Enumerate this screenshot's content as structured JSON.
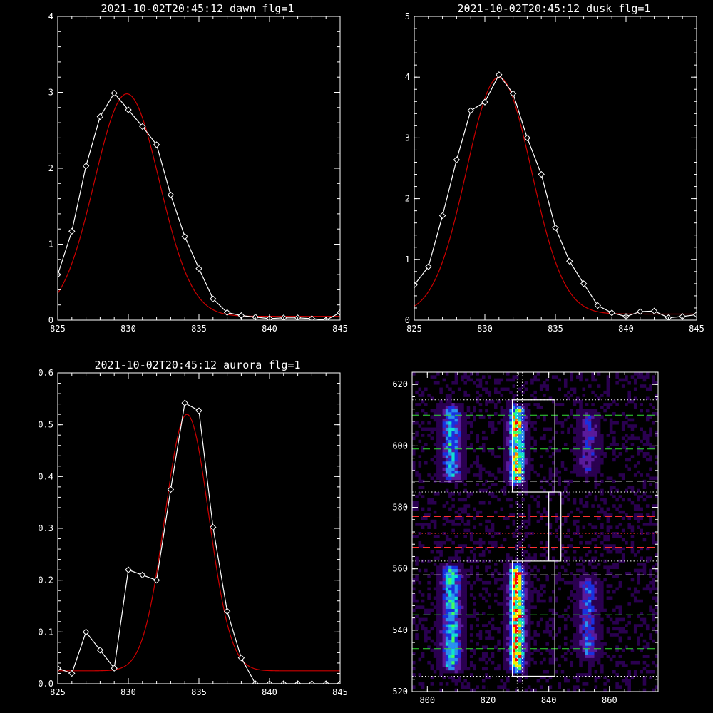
{
  "chart_data": [
    {
      "type": "line",
      "title": "2021-10-02T20:45:12 dawn flg=1",
      "xlabel": "",
      "ylabel": "",
      "xlim": [
        825,
        845
      ],
      "ylim": [
        0,
        4
      ],
      "xticks": [
        825,
        830,
        835,
        840,
        845
      ],
      "yticks": [
        0,
        1,
        2,
        3,
        4
      ],
      "series": [
        {
          "kind": "data",
          "color": "#ffffff",
          "marker": "diamond",
          "x": [
            825,
            826,
            827,
            828,
            829,
            830,
            831,
            832,
            833,
            834,
            835,
            836,
            837,
            838,
            839,
            840,
            841,
            842,
            843,
            844,
            845
          ],
          "y": [
            0.6,
            1.17,
            2.03,
            2.68,
            2.99,
            2.77,
            2.55,
            2.31,
            1.65,
            1.1,
            0.68,
            0.28,
            0.1,
            0.06,
            0.04,
            0.02,
            0.03,
            0.03,
            0.02,
            0.0,
            0.1
          ]
        },
        {
          "kind": "gaussian_fit",
          "color": "#cc0000",
          "amp": 2.93,
          "center": 829.9,
          "sigma": 2.3,
          "offset": 0.05
        }
      ]
    },
    {
      "type": "line",
      "title": "2021-10-02T20:45:12 dusk flg=1",
      "xlabel": "",
      "ylabel": "",
      "xlim": [
        825,
        845
      ],
      "ylim": [
        0,
        5
      ],
      "xticks": [
        825,
        830,
        835,
        840,
        845
      ],
      "yticks": [
        0,
        1,
        2,
        3,
        4,
        5
      ],
      "series": [
        {
          "kind": "data",
          "color": "#ffffff",
          "marker": "diamond",
          "x": [
            825,
            826,
            827,
            828,
            829,
            830,
            831,
            832,
            833,
            834,
            835,
            836,
            837,
            838,
            839,
            840,
            841,
            842,
            843,
            844,
            845
          ],
          "y": [
            0.58,
            0.88,
            1.72,
            2.64,
            3.45,
            3.59,
            4.04,
            3.73,
            3.0,
            2.4,
            1.52,
            0.97,
            0.6,
            0.24,
            0.12,
            0.06,
            0.14,
            0.15,
            0.04,
            0.06,
            0.09
          ]
        },
        {
          "kind": "gaussian_fit",
          "color": "#cc0000",
          "amp": 3.9,
          "center": 831.0,
          "sigma": 2.3,
          "offset": 0.1
        }
      ]
    },
    {
      "type": "line",
      "title": "2021-10-02T20:45:12 aurora flg=1",
      "xlabel": "",
      "ylabel": "",
      "xlim": [
        825,
        845
      ],
      "ylim": [
        0,
        0.6
      ],
      "xticks": [
        825,
        830,
        835,
        840,
        845
      ],
      "yticks": [
        0.0,
        0.1,
        0.2,
        0.3,
        0.4,
        0.5,
        0.6
      ],
      "ytick_labels": [
        "0.0",
        "0.1",
        "0.2",
        "0.3",
        "0.4",
        "0.5",
        "0.6"
      ],
      "series": [
        {
          "kind": "data",
          "color": "#ffffff",
          "marker": "diamond",
          "x": [
            825,
            826,
            827,
            828,
            829,
            830,
            831,
            832,
            833,
            834,
            835,
            836,
            837,
            838,
            839,
            840,
            841,
            842,
            843,
            844,
            845
          ],
          "y": [
            0.03,
            0.02,
            0.1,
            0.065,
            0.03,
            0.22,
            0.21,
            0.2,
            0.375,
            0.542,
            0.527,
            0.302,
            0.14,
            0.05,
            0.0,
            0.0,
            0.0,
            0.0,
            0.0,
            0.0,
            0.0
          ]
        },
        {
          "kind": "gaussian_fit",
          "color": "#cc0000",
          "amp": 0.495,
          "center": 834.15,
          "sigma": 1.55,
          "offset": 0.025
        }
      ]
    },
    {
      "type": "heatmap",
      "title": "",
      "xlabel": "",
      "ylabel": "",
      "xlim": [
        795,
        876
      ],
      "ylim": [
        520,
        624
      ],
      "xticks": [
        800,
        820,
        840,
        860
      ],
      "yticks": [
        520,
        540,
        560,
        580,
        600,
        620
      ],
      "background": "#000000",
      "colormap": [
        "#000000",
        "#2a0050",
        "#5a1a9c",
        "#1a30e0",
        "#2a90f0",
        "#10e0d0",
        "#40ff60",
        "#f0f000",
        "#ff8000",
        "#ff0000"
      ],
      "emission_bands": [
        {
          "x_center": 808,
          "x_width": 4.5,
          "y_from": 588,
          "y_to": 614,
          "peak": 0.55
        },
        {
          "x_center": 829.5,
          "x_width": 3.5,
          "y_from": 587,
          "y_to": 614,
          "peak": 0.9
        },
        {
          "x_center": 853,
          "x_width": 4.5,
          "y_from": 590,
          "y_to": 612,
          "peak": 0.35
        },
        {
          "x_center": 808,
          "x_width": 4.5,
          "y_from": 526,
          "y_to": 562,
          "peak": 0.62
        },
        {
          "x_center": 829.5,
          "x_width": 3.5,
          "y_from": 526,
          "y_to": 562,
          "peak": 1.0
        },
        {
          "x_center": 853,
          "x_width": 4.5,
          "y_from": 530,
          "y_to": 558,
          "peak": 0.4
        }
      ],
      "boxes": [
        {
          "x": [
            828,
            842
          ],
          "y": [
            585,
            615
          ],
          "color": "#ffffff"
        },
        {
          "x": [
            828,
            842
          ],
          "y": [
            525,
            562.5
          ],
          "color": "#ffffff"
        },
        {
          "x": [
            840,
            844
          ],
          "y": [
            562.5,
            585
          ],
          "color": "#ffffff"
        }
      ],
      "vertical_lines": [
        {
          "x": 829.6,
          "style": "dotted",
          "color": "#ffffff"
        },
        {
          "x": 831.3,
          "style": "dotted",
          "color": "#ffffff"
        }
      ],
      "horizontal_lines": [
        {
          "y": 615,
          "style": "dotted",
          "color": "#ffffff"
        },
        {
          "y": 610,
          "style": "dashed",
          "color": "#33dd33"
        },
        {
          "y": 599,
          "style": "dashed",
          "color": "#33dd33"
        },
        {
          "y": 588.5,
          "style": "dashed",
          "color": "#ffffff"
        },
        {
          "y": 585,
          "style": "dotted",
          "color": "#ffffff"
        },
        {
          "y": 577,
          "style": "dashed",
          "color": "#ff3030"
        },
        {
          "y": 571.5,
          "style": "dotted",
          "color": "#ff3030"
        },
        {
          "y": 567,
          "style": "dashed",
          "color": "#ff3030"
        },
        {
          "y": 562.5,
          "style": "dotted",
          "color": "#ffffff"
        },
        {
          "y": 558,
          "style": "dashed",
          "color": "#ffffff"
        },
        {
          "y": 545,
          "style": "dashed",
          "color": "#33dd33"
        },
        {
          "y": 534,
          "style": "dashed",
          "color": "#33dd33"
        },
        {
          "y": 525,
          "style": "dotted",
          "color": "#ffffff"
        }
      ]
    }
  ]
}
